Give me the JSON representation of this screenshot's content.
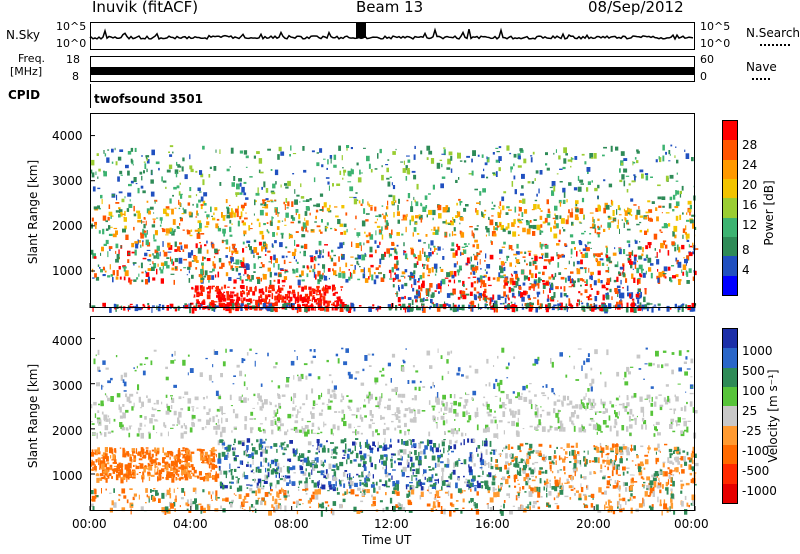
{
  "header": {
    "station": "Inuvik (fitACF)",
    "beam": "Beam 13",
    "date": "08/Sep/2012"
  },
  "summary": {
    "nsky_label": "N.Sky",
    "nsky_ticks": [
      "10^5",
      "10^0"
    ],
    "nsearch_label": "N.Search",
    "nsearch_ticks": [
      "10^5",
      "10^0"
    ],
    "freq_label": "Freq.",
    "freq_unit": "[MHz]",
    "freq_ticks": [
      "18",
      "8"
    ],
    "nave_label": "Nave",
    "nave_ticks": [
      "60",
      "0"
    ],
    "cpid_label": "CPID",
    "cpid_value": "twofsound 3501"
  },
  "chart_data": [
    {
      "type": "heatmap",
      "ylabel": "Slant Range [km]",
      "yticks": [
        "4000",
        "3000",
        "2000",
        "1000"
      ],
      "ylim": [
        180,
        4500
      ],
      "xlim_hours": [
        0,
        24
      ],
      "colorbar_label": "Power [dB]",
      "colorbar_ticks": [
        "28",
        "24",
        "20",
        "16",
        "12",
        "8",
        "4"
      ],
      "colorbar_colors": [
        "#ff0000",
        "#ff5500",
        "#ff9900",
        "#f2c400",
        "#9acd32",
        "#3cb371",
        "#2e8b57",
        "#2050c0",
        "#0000ff"
      ]
    },
    {
      "type": "heatmap",
      "ylabel": "Slant Range [km]",
      "yticks": [
        "4000",
        "3000",
        "2000",
        "1000"
      ],
      "ylim": [
        180,
        4500
      ],
      "xlim_hours": [
        0,
        24
      ],
      "xlabel": "Time UT",
      "xticks": [
        "00:00",
        "04:00",
        "08:00",
        "12:00",
        "16:00",
        "20:00",
        "00:00"
      ],
      "colorbar_label": "Velocity [m s⁻¹]",
      "colorbar_ticks": [
        "1000",
        "500",
        "100",
        "25",
        "-25",
        "-100",
        "-500",
        "-1000"
      ],
      "colorbar_colors": [
        "#1c2fa8",
        "#2a66c8",
        "#2e8b57",
        "#57c43a",
        "#c8c8c8",
        "#ff9a30",
        "#ff6a00",
        "#ff2a00",
        "#e60000"
      ]
    }
  ]
}
